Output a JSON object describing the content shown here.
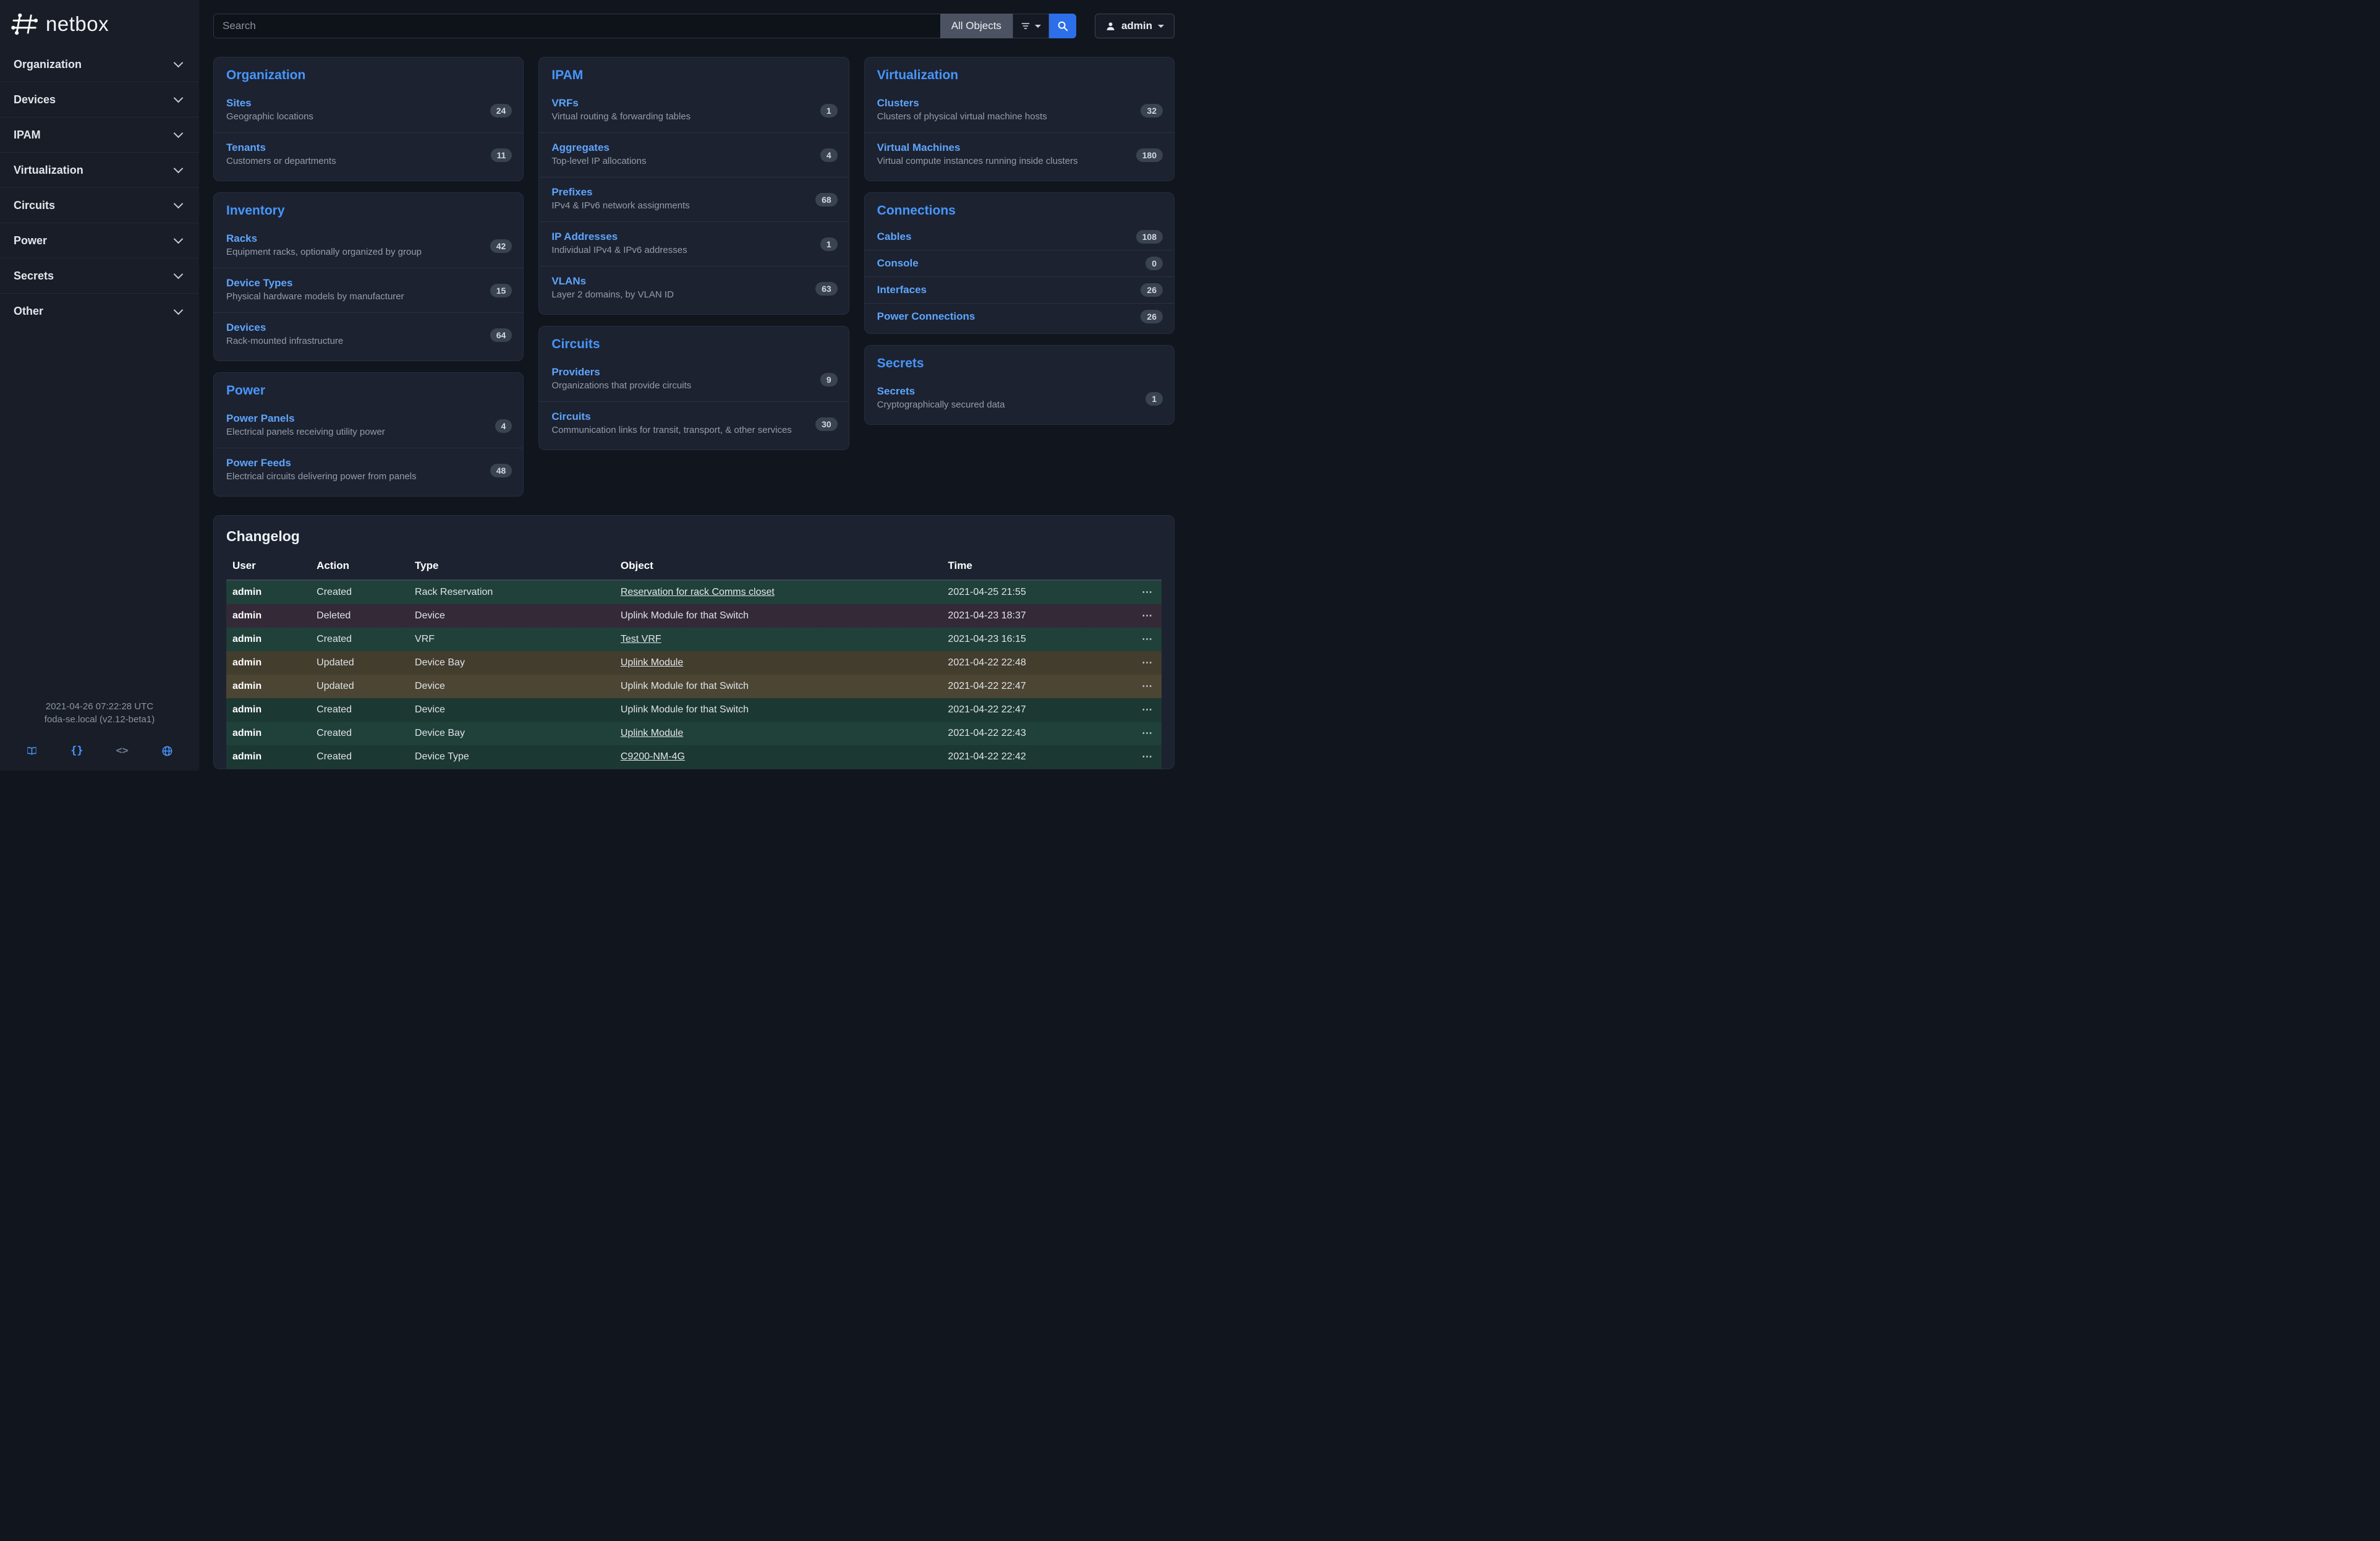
{
  "colors": {
    "accent_blue": "#4896fb",
    "link_blue": "#5fa5fd",
    "search_button_blue": "#2c6fe8",
    "row_created": "#20403a",
    "row_deleted": "#3b2f3f",
    "row_updated": "#4c4533"
  },
  "sidebar": {
    "logo_text": "netbox",
    "items": [
      {
        "label": "Organization"
      },
      {
        "label": "Devices"
      },
      {
        "label": "IPAM"
      },
      {
        "label": "Virtualization"
      },
      {
        "label": "Circuits"
      },
      {
        "label": "Power"
      },
      {
        "label": "Secrets"
      },
      {
        "label": "Other"
      }
    ],
    "footer": {
      "timestamp": "2021-04-26 07:22:28 UTC",
      "host": "foda-se.local (v2.12-beta1)",
      "braces_glyph": "{}",
      "code_glyph": "<>",
      "icons": [
        "docs-book-icon",
        "api-braces-icon",
        "code-icon",
        "globe-icon"
      ]
    }
  },
  "topbar": {
    "search_placeholder": "Search",
    "scope_button_label": "All Objects",
    "filter_icon": "filter-funnel-icon",
    "search_icon": "magnifier-icon",
    "user_icon": "person-icon",
    "user_button_label": "admin"
  },
  "dashboard": {
    "columns": [
      [
        {
          "title": "Organization",
          "items": [
            {
              "name": "Sites",
              "desc": "Geographic locations",
              "count": "24"
            },
            {
              "name": "Tenants",
              "desc": "Customers or departments",
              "count": "11"
            }
          ]
        },
        {
          "title": "Inventory",
          "items": [
            {
              "name": "Racks",
              "desc": "Equipment racks, optionally organized by group",
              "count": "42"
            },
            {
              "name": "Device Types",
              "desc": "Physical hardware models by manufacturer",
              "count": "15"
            },
            {
              "name": "Devices",
              "desc": "Rack-mounted infrastructure",
              "count": "64"
            }
          ]
        },
        {
          "title": "Power",
          "items": [
            {
              "name": "Power Panels",
              "desc": "Electrical panels receiving utility power",
              "count": "4"
            },
            {
              "name": "Power Feeds",
              "desc": "Electrical circuits delivering power from panels",
              "count": "48"
            }
          ]
        }
      ],
      [
        {
          "title": "IPAM",
          "items": [
            {
              "name": "VRFs",
              "desc": "Virtual routing & forwarding tables",
              "count": "1"
            },
            {
              "name": "Aggregates",
              "desc": "Top-level IP allocations",
              "count": "4"
            },
            {
              "name": "Prefixes",
              "desc": "IPv4 & IPv6 network assignments",
              "count": "68"
            },
            {
              "name": "IP Addresses",
              "desc": "Individual IPv4 & IPv6 addresses",
              "count": "1"
            },
            {
              "name": "VLANs",
              "desc": "Layer 2 domains, by VLAN ID",
              "count": "63"
            }
          ]
        },
        {
          "title": "Circuits",
          "items": [
            {
              "name": "Providers",
              "desc": "Organizations that provide circuits",
              "count": "9"
            },
            {
              "name": "Circuits",
              "desc": "Communication links for transit, transport, & other services",
              "count": "30"
            }
          ]
        }
      ],
      [
        {
          "title": "Virtualization",
          "items": [
            {
              "name": "Clusters",
              "desc": "Clusters of physical virtual machine hosts",
              "count": "32"
            },
            {
              "name": "Virtual Machines",
              "desc": "Virtual compute instances running inside clusters",
              "count": "180"
            }
          ]
        },
        {
          "title": "Connections",
          "items": [
            {
              "name": "Cables",
              "desc": "",
              "count": "108"
            },
            {
              "name": "Console",
              "desc": "",
              "count": "0"
            },
            {
              "name": "Interfaces",
              "desc": "",
              "count": "26"
            },
            {
              "name": "Power Connections",
              "desc": "",
              "count": "26"
            }
          ]
        },
        {
          "title": "Secrets",
          "items": [
            {
              "name": "Secrets",
              "desc": "Cryptographically secured data",
              "count": "1"
            }
          ]
        }
      ]
    ]
  },
  "changelog": {
    "title": "Changelog",
    "headers": [
      "User",
      "Action",
      "Type",
      "Object",
      "Time"
    ],
    "row_menu_glyph": "⋯",
    "rows": [
      {
        "user": "admin",
        "action": "Created",
        "type": "Rack Reservation",
        "object": "Reservation for rack Comms closet",
        "object_link": true,
        "time": "2021-04-25 21:55",
        "status": "created"
      },
      {
        "user": "admin",
        "action": "Deleted",
        "type": "Device",
        "object": "Uplink Module for that Switch",
        "object_link": false,
        "time": "2021-04-23 18:37",
        "status": "deleted"
      },
      {
        "user": "admin",
        "action": "Created",
        "type": "VRF",
        "object": "Test VRF",
        "object_link": true,
        "time": "2021-04-23 16:15",
        "status": "created"
      },
      {
        "user": "admin",
        "action": "Updated",
        "type": "Device Bay",
        "object": "Uplink Module",
        "object_link": true,
        "time": "2021-04-22 22:48",
        "status": "updated"
      },
      {
        "user": "admin",
        "action": "Updated",
        "type": "Device",
        "object": "Uplink Module for that Switch",
        "object_link": false,
        "time": "2021-04-22 22:47",
        "status": "updated"
      },
      {
        "user": "admin",
        "action": "Created",
        "type": "Device",
        "object": "Uplink Module for that Switch",
        "object_link": false,
        "time": "2021-04-22 22:47",
        "status": "created"
      },
      {
        "user": "admin",
        "action": "Created",
        "type": "Device Bay",
        "object": "Uplink Module",
        "object_link": true,
        "time": "2021-04-22 22:43",
        "status": "created"
      },
      {
        "user": "admin",
        "action": "Created",
        "type": "Device Type",
        "object": "C9200-NM-4G",
        "object_link": true,
        "time": "2021-04-22 22:42",
        "status": "created"
      }
    ]
  }
}
